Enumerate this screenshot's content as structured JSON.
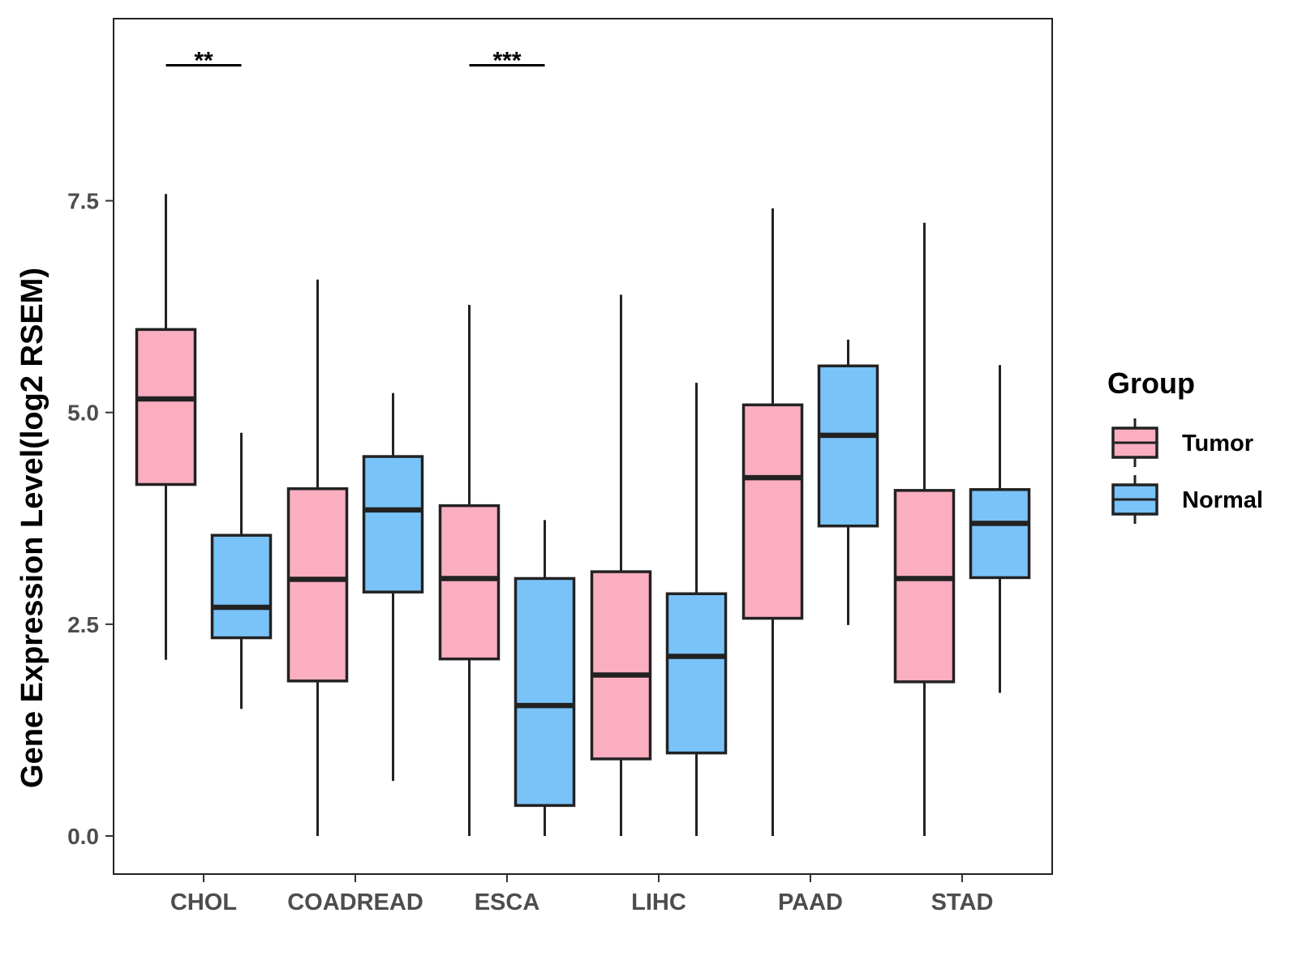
{
  "chart_data": {
    "type": "boxplot",
    "title": "",
    "xlabel": "",
    "ylabel": "Gene Expression Level(log2 RSEM)",
    "ylim": [
      -0.45,
      9.65
    ],
    "yticks": [
      0.0,
      2.5,
      5.0,
      7.5
    ],
    "ytick_labels": [
      "0.0",
      "2.5",
      "5.0",
      "7.5"
    ],
    "grid": false,
    "categories": [
      "CHOL",
      "COADREAD",
      "ESCA",
      "LIHC",
      "PAAD",
      "STAD"
    ],
    "legend": {
      "title": "Group",
      "position": "right",
      "entries": [
        {
          "name": "Tumor",
          "color": "#FBAEC0"
        },
        {
          "name": "Normal",
          "color": "#79C3F9"
        }
      ]
    },
    "series": [
      {
        "name": "Tumor",
        "color": "#FBAEC0",
        "boxes": [
          {
            "category": "CHOL",
            "whisker_low": 2.08,
            "q1": 4.15,
            "median": 5.16,
            "q3": 5.98,
            "whisker_high": 7.58
          },
          {
            "category": "COADREAD",
            "whisker_low": 0.0,
            "q1": 1.83,
            "median": 3.03,
            "q3": 4.1,
            "whisker_high": 6.57
          },
          {
            "category": "ESCA",
            "whisker_low": 0.0,
            "q1": 2.09,
            "median": 3.04,
            "q3": 3.9,
            "whisker_high": 6.27
          },
          {
            "category": "LIHC",
            "whisker_low": 0.0,
            "q1": 0.91,
            "median": 1.9,
            "q3": 3.12,
            "whisker_high": 6.39
          },
          {
            "category": "PAAD",
            "whisker_low": 0.0,
            "q1": 2.57,
            "median": 4.23,
            "q3": 5.09,
            "whisker_high": 7.41
          },
          {
            "category": "STAD",
            "whisker_low": 0.0,
            "q1": 1.82,
            "median": 3.04,
            "q3": 4.08,
            "whisker_high": 7.24
          }
        ]
      },
      {
        "name": "Normal",
        "color": "#79C3F9",
        "boxes": [
          {
            "category": "CHOL",
            "whisker_low": 1.5,
            "q1": 2.34,
            "median": 2.7,
            "q3": 3.55,
            "whisker_high": 4.76
          },
          {
            "category": "COADREAD",
            "whisker_low": 0.65,
            "q1": 2.88,
            "median": 3.85,
            "q3": 4.48,
            "whisker_high": 5.23
          },
          {
            "category": "ESCA",
            "whisker_low": 0.0,
            "q1": 0.36,
            "median": 1.54,
            "q3": 3.04,
            "whisker_high": 3.73
          },
          {
            "category": "LIHC",
            "whisker_low": 0.0,
            "q1": 0.98,
            "median": 2.12,
            "q3": 2.86,
            "whisker_high": 5.35
          },
          {
            "category": "PAAD",
            "whisker_low": 2.49,
            "q1": 3.66,
            "median": 4.73,
            "q3": 5.55,
            "whisker_high": 5.86
          },
          {
            "category": "STAD",
            "whisker_low": 1.69,
            "q1": 3.05,
            "median": 3.69,
            "q3": 4.09,
            "whisker_high": 5.56
          }
        ]
      }
    ],
    "annotations": [
      {
        "category": "CHOL",
        "text": "**",
        "y": 9.1
      },
      {
        "category": "ESCA",
        "text": "***",
        "y": 9.1
      }
    ]
  }
}
